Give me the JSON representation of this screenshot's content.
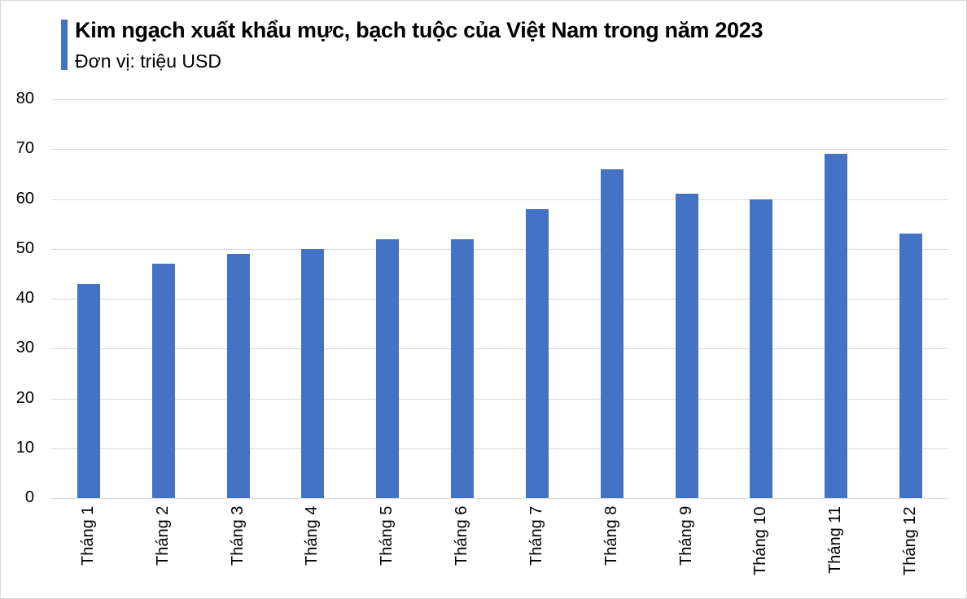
{
  "header": {
    "title": "Kim ngạch xuất khẩu mực, bạch tuộc của Việt Nam trong năm 2023",
    "subtitle": "Đơn vị: triệu USD",
    "accent_color": "#4472c4"
  },
  "chart_data": {
    "type": "bar",
    "title": "Kim ngạch xuất khẩu mực, bạch tuộc của Việt Nam trong năm 2023",
    "subtitle": "Đơn vị: triệu USD",
    "categories": [
      "Tháng 1",
      "Tháng 2",
      "Tháng 3",
      "Tháng 4",
      "Tháng 5",
      "Tháng 6",
      "Tháng 7",
      "Tháng 8",
      "Tháng 9",
      "Tháng 10",
      "Tháng 11",
      "Tháng 12"
    ],
    "values": [
      43,
      47,
      49,
      50,
      52,
      52,
      58,
      66,
      61,
      60,
      69,
      53
    ],
    "xlabel": "",
    "ylabel": "",
    "ylim": [
      0,
      80
    ],
    "yticks": [
      0,
      10,
      20,
      30,
      40,
      50,
      60,
      70,
      80
    ],
    "grid": true,
    "legend": "none",
    "bar_color": "#4472c4"
  }
}
